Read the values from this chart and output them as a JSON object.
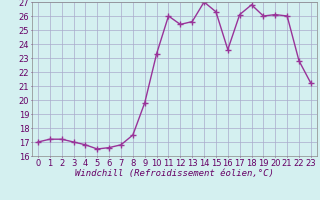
{
  "x": [
    0,
    1,
    2,
    3,
    4,
    5,
    6,
    7,
    8,
    9,
    10,
    11,
    12,
    13,
    14,
    15,
    16,
    17,
    18,
    19,
    20,
    21,
    22,
    23
  ],
  "y": [
    17.0,
    17.2,
    17.2,
    17.0,
    16.8,
    16.5,
    16.6,
    16.8,
    17.5,
    19.8,
    23.3,
    26.0,
    25.4,
    25.6,
    27.0,
    26.3,
    23.6,
    26.1,
    26.8,
    26.0,
    26.1,
    26.0,
    22.8,
    21.2
  ],
  "line_color": "#993399",
  "marker": "+",
  "marker_size": 4,
  "bg_color": "#d4f0f0",
  "grid_color": "#aaaacc",
  "xlabel": "Windchill (Refroidissement éolien,°C)",
  "ylim": [
    16,
    27
  ],
  "yticks": [
    16,
    17,
    18,
    19,
    20,
    21,
    22,
    23,
    24,
    25,
    26,
    27
  ],
  "xticks": [
    0,
    1,
    2,
    3,
    4,
    5,
    6,
    7,
    8,
    9,
    10,
    11,
    12,
    13,
    14,
    15,
    16,
    17,
    18,
    19,
    20,
    21,
    22,
    23
  ],
  "xtick_labels": [
    "0",
    "1",
    "2",
    "3",
    "4",
    "5",
    "6",
    "7",
    "8",
    "9",
    "10",
    "11",
    "12",
    "13",
    "14",
    "15",
    "16",
    "17",
    "18",
    "19",
    "20",
    "21",
    "22",
    "23"
  ],
  "xlabel_fontsize": 6.5,
  "tick_fontsize": 6.0,
  "line_width": 1.0
}
